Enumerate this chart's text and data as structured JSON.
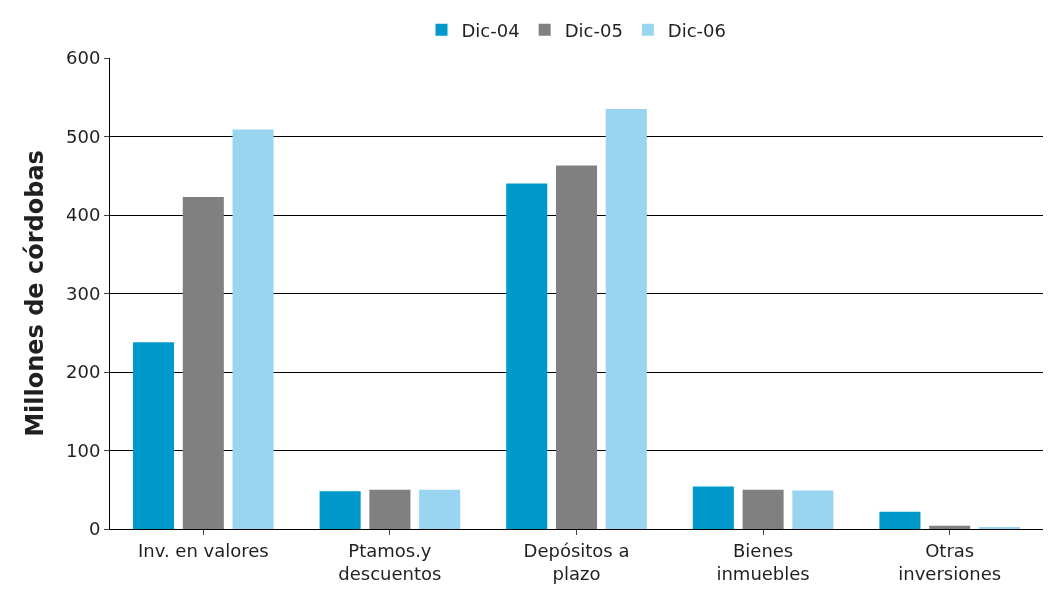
{
  "chart_data": {
    "type": "bar",
    "ylabel": "Millones de córdobas",
    "categories": [
      "Inv. en valores",
      "Ptamos.y\ndescuentos",
      "Depósitos a\nplazo",
      "Bienes\ninmuebles",
      "Otras\ninversiones"
    ],
    "series": [
      {
        "name": "Dic-04",
        "color": "#0099cc",
        "values": [
          238,
          48,
          440,
          54,
          22
        ]
      },
      {
        "name": "Dic-05",
        "color": "#808080",
        "values": [
          423,
          50,
          463,
          50,
          4
        ]
      },
      {
        "name": "Dic-06",
        "color": "#99d4f0",
        "values": [
          509,
          50,
          535,
          49,
          2
        ]
      }
    ],
    "ylim": [
      0,
      600
    ],
    "yticks": [
      0,
      100,
      200,
      300,
      400,
      500,
      600
    ],
    "grid": "y",
    "legend": "top"
  }
}
